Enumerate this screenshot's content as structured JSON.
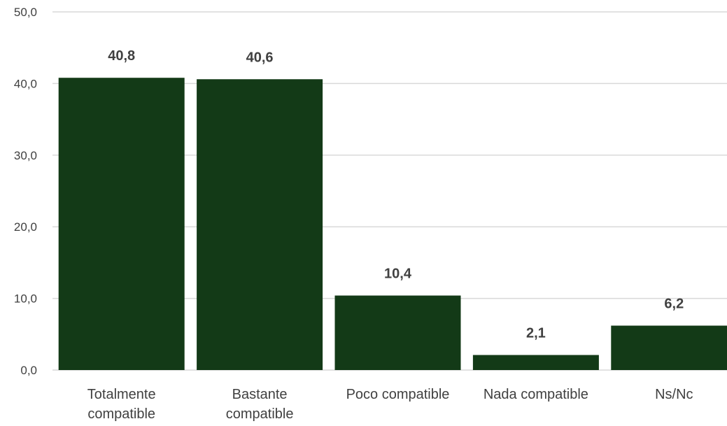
{
  "chart_data": {
    "type": "bar",
    "categories": [
      [
        "Totalmente",
        "compatible"
      ],
      [
        "Bastante",
        "compatible"
      ],
      [
        "Poco compatible"
      ],
      [
        "Nada compatible"
      ],
      [
        "Ns/Nc"
      ]
    ],
    "values": [
      40.8,
      40.6,
      10.4,
      2.1,
      6.2
    ],
    "data_labels": [
      "40,8",
      "40,6",
      "10,4",
      "2,1",
      "6,2"
    ],
    "ylim": [
      0,
      50
    ],
    "y_ticks": [
      {
        "value": 0,
        "label": "0,0"
      },
      {
        "value": 10,
        "label": "10,0"
      },
      {
        "value": 20,
        "label": "20,0"
      },
      {
        "value": 30,
        "label": "30,0"
      },
      {
        "value": 40,
        "label": "40,0"
      },
      {
        "value": 50,
        "label": "50,0"
      }
    ],
    "grid": true,
    "legend": "none",
    "bar_color": "#133a17",
    "title": "",
    "xlabel": "",
    "ylabel": ""
  }
}
